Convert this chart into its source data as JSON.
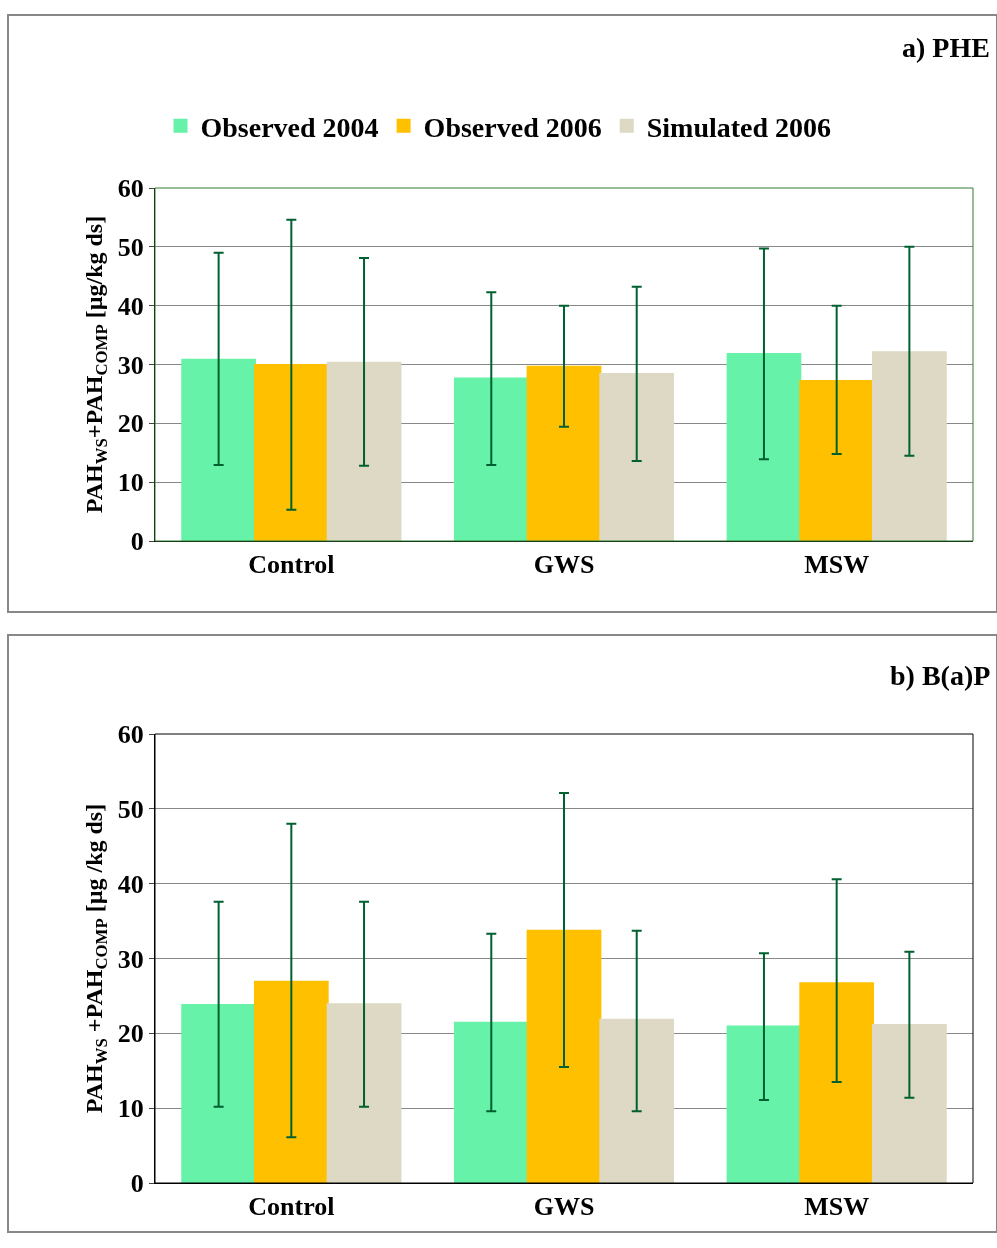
{
  "chart_data": [
    {
      "type": "bar",
      "title": "a) PHE",
      "ylabel": "PAH$_{WS}$+PAH$_{COMP}$ [µg/kg ds]",
      "categories": [
        "Control",
        "GWS",
        "MSW"
      ],
      "ylim": [
        0,
        60
      ],
      "yticks": [
        0,
        10,
        20,
        30,
        40,
        50,
        60
      ],
      "grid": "y",
      "legend": "top",
      "series": [
        {
          "name": "Observed 2004",
          "color": "#66f2a8",
          "values": [
            30.8,
            27.6,
            31.8
          ],
          "errors": [
            [
              12.9,
              49
            ],
            [
              12.9,
              42.3
            ],
            [
              13.9,
              49.7
            ]
          ]
        },
        {
          "name": "Observed 2006",
          "color": "#ffc000",
          "values": [
            29.9,
            29.6,
            27.2
          ],
          "errors": [
            [
              5.3,
              54.6
            ],
            [
              19.4,
              40
            ],
            [
              14.8,
              40
            ]
          ]
        },
        {
          "name": "Simulated 2006",
          "color": "#ddd9c4",
          "values": [
            30.3,
            28.4,
            32.1
          ],
          "errors": [
            [
              12.8,
              48.1
            ],
            [
              13.6,
              43.2
            ],
            [
              14.5,
              50
            ]
          ]
        }
      ]
    },
    {
      "type": "bar",
      "title": "b) B(a)P",
      "ylabel": "PAH$_{WS}$ +PAH$_{COMP}$ [µg /kg ds]",
      "categories": [
        "Control",
        "GWS",
        "MSW"
      ],
      "ylim": [
        0,
        60
      ],
      "yticks": [
        0,
        10,
        20,
        30,
        40,
        50,
        60
      ],
      "grid": "y",
      "series": [
        {
          "color": "#66f2a8",
          "values": [
            23.8,
            21.4,
            20.9
          ],
          "errors": [
            [
              10.2,
              37.6
            ],
            [
              9.6,
              33.3
            ],
            [
              11.1,
              30.7
            ]
          ]
        },
        {
          "color": "#ffc000",
          "values": [
            26.9,
            33.7,
            26.7
          ],
          "errors": [
            [
              6.1,
              48
            ],
            [
              15.5,
              52.1
            ],
            [
              13.5,
              40.6
            ]
          ]
        },
        {
          "color": "#ddd9c4",
          "values": [
            23.9,
            21.8,
            21.1
          ],
          "errors": [
            [
              10.2,
              37.6
            ],
            [
              9.6,
              33.7
            ],
            [
              11.4,
              30.9
            ]
          ]
        }
      ]
    }
  ]
}
